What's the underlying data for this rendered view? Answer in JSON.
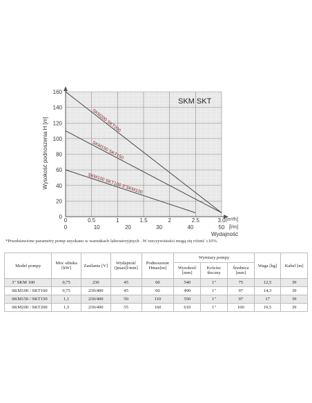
{
  "chart_data": {
    "type": "line",
    "title": "SKM SKT",
    "ylabel": "Wysokość podnoszenia H [m]",
    "xlabel": "Wydajność",
    "x_unit_primary": "[m³/h]",
    "x_unit_secondary": "[l/m]",
    "ylim": [
      0,
      160
    ],
    "xlim": [
      0,
      3.0
    ],
    "y_ticks": [
      "0",
      "20",
      "40",
      "60",
      "80",
      "100",
      "120",
      "140",
      "160"
    ],
    "x_ticks_primary": [
      "0",
      "0.5",
      "1",
      "1.5",
      "2",
      "2.5",
      "3.0"
    ],
    "x_ticks_secondary": [
      "0",
      "10",
      "20",
      "30",
      "40",
      "50"
    ],
    "grid": true,
    "series": [
      {
        "name": "SKM200 SKT200",
        "x": [
          0,
          3.0
        ],
        "y": [
          160,
          5
        ],
        "color": "#8a2a2a"
      },
      {
        "name": "SKM150 SKT150",
        "x": [
          0,
          3.0
        ],
        "y": [
          110,
          5
        ],
        "color": "#8a2a2a"
      },
      {
        "name": "SKM100 SKT100 3\"SKM100",
        "x": [
          0,
          2.5
        ],
        "y": [
          60,
          5
        ],
        "color": "#8a2a2a"
      }
    ]
  },
  "note": "*Przedstawione parametry pomp uzyskano w warunkach laboratoryjnych . W rzeczywistości mogą się różnić ±10%.",
  "table": {
    "headers": {
      "model": "Model pompy",
      "moc": "Moc silnika [kW]",
      "zasilanie": "Zasilanie [V]",
      "wydajnosc": "Wydajność Qmax[l/min]",
      "podnoszenie": "Podnoszenie Hmax[m]",
      "wymiary": "Wymiary pompy",
      "wysokosc": "Wysokość [mm]",
      "krociec": "Króciec tłoczny",
      "srednica": "Średnica [mm]",
      "waga": "Waga [kg]",
      "kabel": "Kabel [m]"
    },
    "rows": [
      {
        "model": "3\" SKM 100",
        "moc": "0,75",
        "zasilanie": "230",
        "wydajnosc": "45",
        "podnoszenie": "60",
        "wysokosc": "540",
        "krociec": "1\"",
        "srednica": "75",
        "waga": "12,5",
        "kabel": "39"
      },
      {
        "model": "SKM100 / SKT100",
        "moc": "0,75",
        "zasilanie": "230/400",
        "wydajnosc": "45",
        "podnoszenie": "60",
        "wysokosc": "490",
        "krociec": "1\"",
        "srednica": "97",
        "waga": "14,3",
        "kabel": "39"
      },
      {
        "model": "SKM150 / SKT150",
        "moc": "1,1",
        "zasilanie": "230/400",
        "wydajnosc": "50",
        "podnoszenie": "110",
        "wysokosc": "550",
        "krociec": "1\"",
        "srednica": "97",
        "waga": "17",
        "kabel": "39"
      },
      {
        "model": "SKM200 / SKT200",
        "moc": "1,5",
        "zasilanie": "230/400",
        "wydajnosc": "55",
        "podnoszenie": "160",
        "wysokosc": "610",
        "krociec": "1\"",
        "srednica": "100",
        "waga": "19,5",
        "kabel": "39"
      }
    ]
  }
}
